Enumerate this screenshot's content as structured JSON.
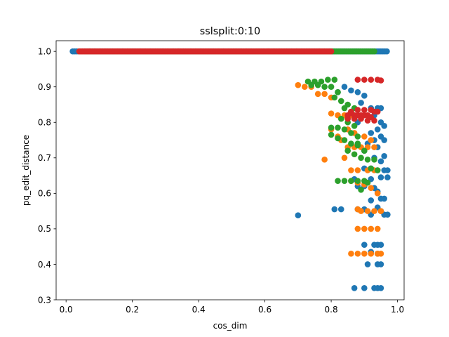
{
  "chart_data": {
    "type": "scatter",
    "title": "sslsplit:0:10",
    "xlabel": "cos_dim",
    "ylabel": "pq_edit_distance",
    "xlim": [
      -0.03,
      1.02
    ],
    "ylim": [
      0.3,
      1.03
    ],
    "xticks": [
      "0.0",
      "0.2",
      "0.4",
      "0.6",
      "0.8",
      "1.0"
    ],
    "xtick_values": [
      0.0,
      0.2,
      0.4,
      0.6,
      0.8,
      1.0
    ],
    "yticks": [
      "0.3",
      "0.4",
      "0.5",
      "0.6",
      "0.7",
      "0.8",
      "0.9",
      "1.0"
    ],
    "ytick_values": [
      0.3,
      0.4,
      0.5,
      0.6,
      0.7,
      0.8,
      0.9,
      1.0
    ],
    "grid": false,
    "legend": "none",
    "series": [
      {
        "color": "#1f77b4",
        "bands": [
          {
            "y": 1.0,
            "x": [
              0.02,
              0.97
            ],
            "step": 0.006
          }
        ],
        "points": [
          [
            0.84,
            0.9
          ],
          [
            0.86,
            0.89
          ],
          [
            0.88,
            0.885
          ],
          [
            0.9,
            0.875
          ],
          [
            0.82,
            0.885
          ],
          [
            0.89,
            0.855
          ],
          [
            0.92,
            0.84
          ],
          [
            0.94,
            0.84
          ],
          [
            0.95,
            0.84
          ],
          [
            0.93,
            0.82
          ],
          [
            0.95,
            0.8
          ],
          [
            0.96,
            0.79
          ],
          [
            0.94,
            0.78
          ],
          [
            0.92,
            0.77
          ],
          [
            0.95,
            0.76
          ],
          [
            0.93,
            0.75
          ],
          [
            0.96,
            0.75
          ],
          [
            0.94,
            0.73
          ],
          [
            0.96,
            0.705
          ],
          [
            0.95,
            0.69
          ],
          [
            0.9,
            0.67
          ],
          [
            0.92,
            0.67
          ],
          [
            0.94,
            0.665
          ],
          [
            0.96,
            0.665
          ],
          [
            0.97,
            0.665
          ],
          [
            0.95,
            0.645
          ],
          [
            0.97,
            0.645
          ],
          [
            0.92,
            0.64
          ],
          [
            0.88,
            0.62
          ],
          [
            0.9,
            0.62
          ],
          [
            0.93,
            0.615
          ],
          [
            0.94,
            0.605
          ],
          [
            0.95,
            0.585
          ],
          [
            0.96,
            0.585
          ],
          [
            0.92,
            0.58
          ],
          [
            0.94,
            0.56
          ],
          [
            0.81,
            0.555
          ],
          [
            0.83,
            0.555
          ],
          [
            0.88,
            0.555
          ],
          [
            0.9,
            0.555
          ],
          [
            0.95,
            0.55
          ],
          [
            0.96,
            0.54
          ],
          [
            0.97,
            0.54
          ],
          [
            0.7,
            0.538
          ],
          [
            0.92,
            0.54
          ],
          [
            0.9,
            0.455
          ],
          [
            0.93,
            0.455
          ],
          [
            0.94,
            0.455
          ],
          [
            0.95,
            0.455
          ],
          [
            0.92,
            0.435
          ],
          [
            0.94,
            0.43
          ],
          [
            0.91,
            0.4
          ],
          [
            0.94,
            0.4
          ],
          [
            0.95,
            0.4
          ],
          [
            0.87,
            0.333
          ],
          [
            0.9,
            0.333
          ],
          [
            0.93,
            0.333
          ],
          [
            0.94,
            0.333
          ],
          [
            0.95,
            0.333
          ],
          [
            0.9,
            0.72
          ],
          [
            0.91,
            0.74
          ],
          [
            0.93,
            0.7
          ],
          [
            0.87,
            0.64
          ],
          [
            0.85,
            0.78
          ],
          [
            0.88,
            0.8
          ]
        ]
      },
      {
        "color": "#ff7f0e",
        "bands": [
          {
            "y": 1.0,
            "x": [
              0.04,
              0.8
            ],
            "step": 0.006
          }
        ],
        "points": [
          [
            0.7,
            0.905
          ],
          [
            0.72,
            0.9
          ],
          [
            0.74,
            0.9
          ],
          [
            0.76,
            0.88
          ],
          [
            0.78,
            0.88
          ],
          [
            0.8,
            0.87
          ],
          [
            0.8,
            0.825
          ],
          [
            0.82,
            0.82
          ],
          [
            0.84,
            0.82
          ],
          [
            0.86,
            0.82
          ],
          [
            0.85,
            0.78
          ],
          [
            0.87,
            0.77
          ],
          [
            0.9,
            0.76
          ],
          [
            0.92,
            0.75
          ],
          [
            0.83,
            0.75
          ],
          [
            0.85,
            0.73
          ],
          [
            0.87,
            0.73
          ],
          [
            0.89,
            0.73
          ],
          [
            0.91,
            0.73
          ],
          [
            0.93,
            0.73
          ],
          [
            0.78,
            0.695
          ],
          [
            0.86,
            0.665
          ],
          [
            0.88,
            0.665
          ],
          [
            0.91,
            0.665
          ],
          [
            0.93,
            0.665
          ],
          [
            0.86,
            0.635
          ],
          [
            0.88,
            0.63
          ],
          [
            0.9,
            0.625
          ],
          [
            0.92,
            0.615
          ],
          [
            0.94,
            0.6
          ],
          [
            0.88,
            0.555
          ],
          [
            0.89,
            0.55
          ],
          [
            0.91,
            0.55
          ],
          [
            0.93,
            0.55
          ],
          [
            0.95,
            0.55
          ],
          [
            0.88,
            0.5
          ],
          [
            0.9,
            0.5
          ],
          [
            0.92,
            0.5
          ],
          [
            0.94,
            0.5
          ],
          [
            0.86,
            0.43
          ],
          [
            0.88,
            0.43
          ],
          [
            0.9,
            0.43
          ],
          [
            0.92,
            0.43
          ],
          [
            0.94,
            0.43
          ],
          [
            0.95,
            0.43
          ],
          [
            0.84,
            0.7
          ],
          [
            0.8,
            0.78
          ],
          [
            0.82,
            0.76
          ]
        ]
      },
      {
        "color": "#2ca02c",
        "bands": [
          {
            "y": 1.0,
            "x": [
              0.06,
              0.93
            ],
            "step": 0.006
          }
        ],
        "points": [
          [
            0.73,
            0.915
          ],
          [
            0.75,
            0.915
          ],
          [
            0.77,
            0.915
          ],
          [
            0.79,
            0.92
          ],
          [
            0.81,
            0.92
          ],
          [
            0.74,
            0.905
          ],
          [
            0.76,
            0.905
          ],
          [
            0.78,
            0.9
          ],
          [
            0.8,
            0.9
          ],
          [
            0.82,
            0.885
          ],
          [
            0.81,
            0.87
          ],
          [
            0.83,
            0.86
          ],
          [
            0.85,
            0.85
          ],
          [
            0.87,
            0.84
          ],
          [
            0.84,
            0.84
          ],
          [
            0.86,
            0.83
          ],
          [
            0.83,
            0.81
          ],
          [
            0.85,
            0.8
          ],
          [
            0.87,
            0.79
          ],
          [
            0.8,
            0.785
          ],
          [
            0.82,
            0.785
          ],
          [
            0.84,
            0.78
          ],
          [
            0.86,
            0.77
          ],
          [
            0.88,
            0.76
          ],
          [
            0.8,
            0.765
          ],
          [
            0.82,
            0.755
          ],
          [
            0.84,
            0.75
          ],
          [
            0.86,
            0.74
          ],
          [
            0.88,
            0.735
          ],
          [
            0.85,
            0.72
          ],
          [
            0.87,
            0.71
          ],
          [
            0.89,
            0.7
          ],
          [
            0.91,
            0.695
          ],
          [
            0.93,
            0.695
          ],
          [
            0.92,
            0.67
          ],
          [
            0.94,
            0.665
          ],
          [
            0.82,
            0.635
          ],
          [
            0.84,
            0.635
          ],
          [
            0.86,
            0.635
          ],
          [
            0.88,
            0.635
          ],
          [
            0.9,
            0.635
          ],
          [
            0.91,
            0.63
          ],
          [
            0.89,
            0.61
          ],
          [
            0.88,
            0.74
          ],
          [
            0.9,
            0.72
          ]
        ]
      },
      {
        "color": "#d62728",
        "bands": [
          {
            "y": 1.0,
            "x": [
              0.04,
              0.8
            ],
            "step": 0.005
          }
        ],
        "points": [
          [
            0.88,
            0.92
          ],
          [
            0.9,
            0.92
          ],
          [
            0.92,
            0.92
          ],
          [
            0.94,
            0.92
          ],
          [
            0.95,
            0.918
          ],
          [
            0.85,
            0.82
          ],
          [
            0.86,
            0.825
          ],
          [
            0.87,
            0.82
          ],
          [
            0.88,
            0.82
          ],
          [
            0.89,
            0.82
          ],
          [
            0.9,
            0.82
          ],
          [
            0.91,
            0.82
          ],
          [
            0.92,
            0.815
          ],
          [
            0.93,
            0.83
          ],
          [
            0.94,
            0.83
          ],
          [
            0.85,
            0.81
          ],
          [
            0.87,
            0.81
          ],
          [
            0.89,
            0.81
          ],
          [
            0.91,
            0.805
          ],
          [
            0.93,
            0.805
          ],
          [
            0.86,
            0.83
          ],
          [
            0.88,
            0.835
          ],
          [
            0.9,
            0.835
          ],
          [
            0.92,
            0.835
          ]
        ]
      }
    ]
  }
}
